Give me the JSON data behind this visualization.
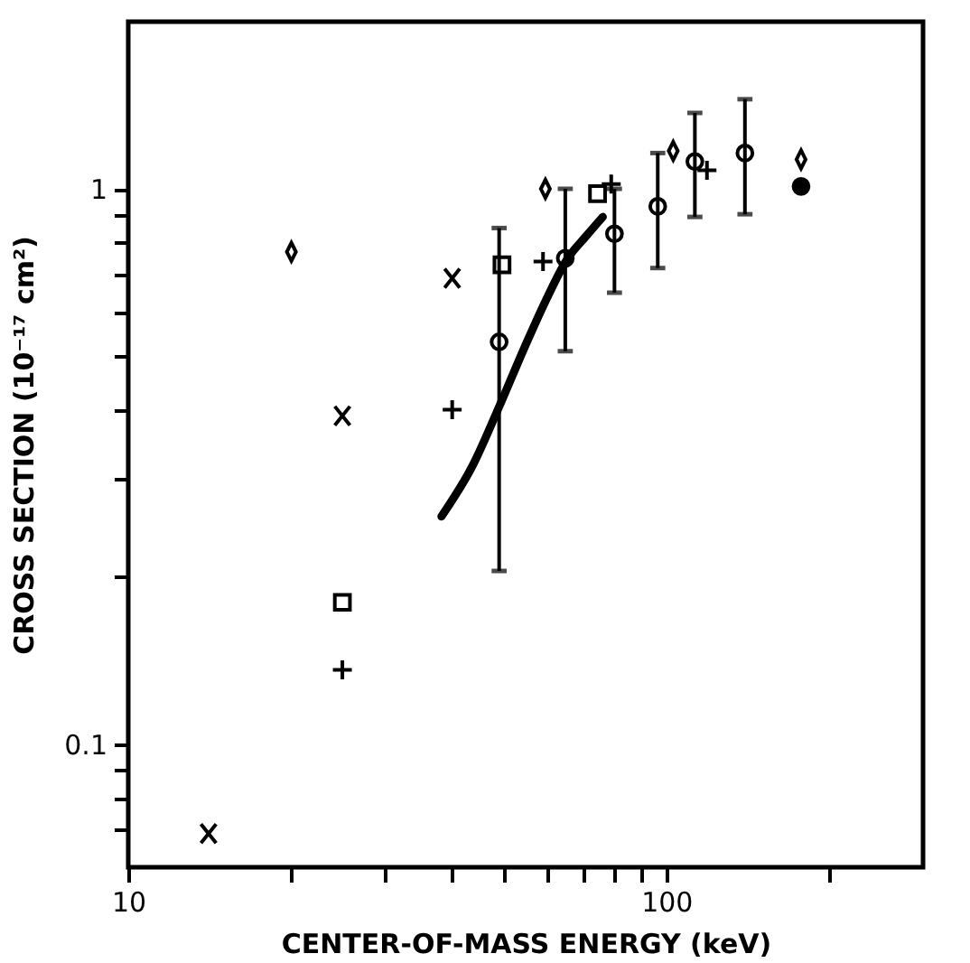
{
  "chart_data": {
    "type": "scatter",
    "xlabel": "CENTER-OF-MASS ENERGY (keV)",
    "ylabel": "CROSS SECTION (10⁻¹⁷ cm²)",
    "log": "xy",
    "xlim": [
      10,
      300
    ],
    "ylim": [
      0.06,
      2
    ],
    "xticks": [
      10,
      {
        "value": 20,
        "label": null
      },
      {
        "value": 30,
        "label": null
      },
      {
        "value": 40,
        "label": null
      },
      {
        "value": 50,
        "label": null
      },
      {
        "value": 60,
        "label": null
      },
      {
        "value": 70,
        "label": null
      },
      {
        "value": 80,
        "label": null
      },
      {
        "value": 90,
        "label": null
      },
      100,
      {
        "value": 200,
        "label": null
      }
    ],
    "yticks": [
      {
        "value": 0.07,
        "label": null
      },
      {
        "value": 0.08,
        "label": null
      },
      {
        "value": 0.09,
        "label": null
      },
      0.1,
      {
        "value": 0.2,
        "label": null
      },
      {
        "value": 0.3,
        "label": null
      },
      {
        "value": 0.4,
        "label": null
      },
      {
        "value": 0.5,
        "label": null
      },
      {
        "value": 0.6,
        "label": null
      },
      {
        "value": 0.7,
        "label": null
      },
      {
        "value": 0.8,
        "label": null
      },
      {
        "value": 0.9,
        "label": null
      },
      1
    ],
    "grid": false,
    "series": [
      {
        "color": "#000000",
        "x": [
          14.1,
          25,
          40
        ],
        "values": [
          0.069,
          0.39,
          0.69
        ]
      },
      {
        "marker": "cross",
        "color": "#000000",
        "x": [
          25,
          40,
          59,
          79,
          119
        ],
        "values": [
          0.136,
          0.4,
          0.74,
          1.02,
          1.08
        ]
      },
      {
        "marker": "square",
        "color": "#000000",
        "x": [
          25,
          49.5,
          74.5
        ],
        "values": [
          0.18,
          0.73,
          0.98
        ]
      },
      {
        "marker": "diamond",
        "color": "#000000",
        "x": [
          20.1,
          59.6,
          103,
          178
        ],
        "values": [
          0.77,
          1.0,
          1.17,
          1.13
        ]
      },
      {
        "marker": "circle",
        "color": "#000000",
        "x": [
          178
        ],
        "values": [
          1.01
        ]
      },
      {
        "marker": "circle",
        "color": "#000000",
        "x": [
          48.9,
          64.9,
          80.1,
          96.4,
          113,
          140
        ],
        "values": [
          0.53,
          0.75,
          0.83,
          0.93,
          1.12,
          1.16
        ],
        "errors": [
          [
            0.205,
            0.85
          ],
          [
            0.51,
            1.0
          ],
          [
            0.65,
            1.0
          ],
          [
            0.72,
            1.16
          ],
          [
            0.89,
            1.37
          ],
          [
            0.9,
            1.45
          ]
        ]
      },
      {
        "type": "line",
        "marker": "none",
        "line_style": "solid",
        "color": "#000000",
        "x": [
          38.2,
          43.7,
          48.9,
          54.6,
          60.2,
          65.6,
          70.8,
          76.2
        ],
        "values": [
          0.257,
          0.318,
          0.405,
          0.52,
          0.64,
          0.75,
          0.82,
          0.89
        ]
      }
    ]
  }
}
